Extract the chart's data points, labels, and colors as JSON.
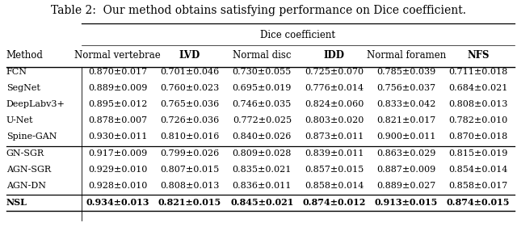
{
  "title": "Table 2:  Our method obtains satisfying performance on Dice coefficient.",
  "col_group_header": "Dice coefficient",
  "col_headers": [
    "Normal vertebrae",
    "LVD",
    "Normal disc",
    "IDD",
    "Normal foramen",
    "NFS"
  ],
  "col_headers_bold": [
    false,
    true,
    false,
    true,
    false,
    true
  ],
  "row_label": "Method",
  "methods": [
    "FCN",
    "SegNet",
    "DeepLabv3+",
    "U-Net",
    "Spine-GAN",
    "GN-SGR",
    "AGN-SGR",
    "AGN-DN",
    "NSL"
  ],
  "data": [
    [
      "0.870±0.017",
      "0.701±0.046",
      "0.730±0.055",
      "0.725±0.070",
      "0.785±0.039",
      "0.711±0.018"
    ],
    [
      "0.889±0.009",
      "0.760±0.023",
      "0.695±0.019",
      "0.776±0.014",
      "0.756±0.037",
      "0.684±0.021"
    ],
    [
      "0.895±0.012",
      "0.765±0.036",
      "0.746±0.035",
      "0.824±0.060",
      "0.833±0.042",
      "0.808±0.013"
    ],
    [
      "0.878±0.007",
      "0.726±0.036",
      "0.772±0.025",
      "0.803±0.020",
      "0.821±0.017",
      "0.782±0.010"
    ],
    [
      "0.930±0.011",
      "0.810±0.016",
      "0.840±0.026",
      "0.873±0.011",
      "0.900±0.011",
      "0.870±0.018"
    ],
    [
      "0.917±0.009",
      "0.799±0.026",
      "0.809±0.028",
      "0.839±0.011",
      "0.863±0.029",
      "0.815±0.019"
    ],
    [
      "0.929±0.010",
      "0.807±0.015",
      "0.835±0.021",
      "0.857±0.015",
      "0.887±0.009",
      "0.854±0.014"
    ],
    [
      "0.928±0.010",
      "0.808±0.013",
      "0.836±0.011",
      "0.858±0.014",
      "0.889±0.027",
      "0.858±0.017"
    ],
    [
      "0.934±0.013",
      "0.821±0.015",
      "0.845±0.021",
      "0.874±0.012",
      "0.913±0.015",
      "0.874±0.015"
    ]
  ],
  "data_bold": [
    false,
    false,
    false,
    false,
    false,
    false,
    false,
    false,
    true
  ],
  "methods_bold": [
    false,
    false,
    false,
    false,
    false,
    false,
    false,
    false,
    true
  ],
  "bg_color": "#ffffff",
  "title_fontsize": 10.0,
  "header_fontsize": 8.5,
  "cell_fontsize": 8.0
}
